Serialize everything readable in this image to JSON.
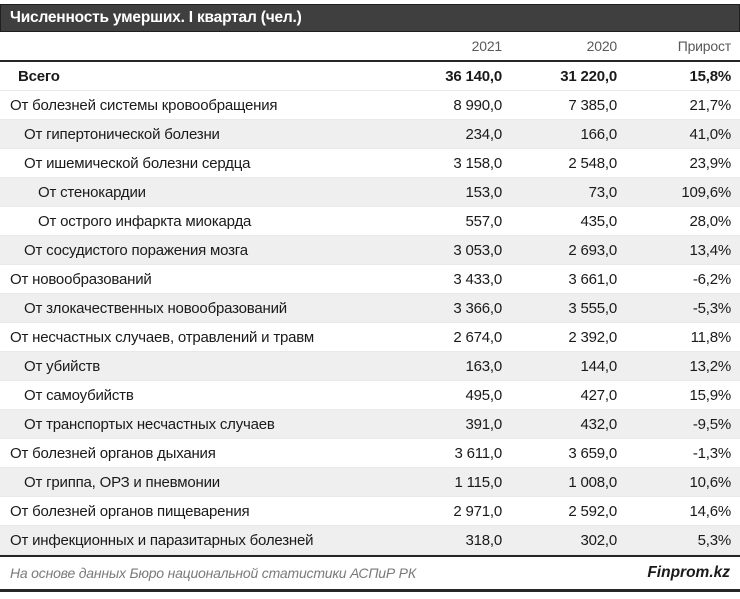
{
  "title": "Численность умерших. I квартал (чел.)",
  "table": {
    "columns": {
      "year1": "2021",
      "year2": "2020",
      "growth": "Прирост"
    },
    "rows": [
      {
        "label": "Всего",
        "y2021": "36 140,0",
        "y2020": "31 220,0",
        "growth": "15,8%",
        "indent": 0,
        "total": true,
        "shaded": false
      },
      {
        "label": "От болезней системы кровообращения",
        "y2021": "8 990,0",
        "y2020": "7 385,0",
        "growth": "21,7%",
        "indent": 0,
        "total": false,
        "shaded": false
      },
      {
        "label": "От гипертонической болезни",
        "y2021": "234,0",
        "y2020": "166,0",
        "growth": "41,0%",
        "indent": 1,
        "total": false,
        "shaded": true
      },
      {
        "label": "От ишемической болезни сердца",
        "y2021": "3 158,0",
        "y2020": "2 548,0",
        "growth": "23,9%",
        "indent": 1,
        "total": false,
        "shaded": false
      },
      {
        "label": "От стенокардии",
        "y2021": "153,0",
        "y2020": "73,0",
        "growth": "109,6%",
        "indent": 2,
        "total": false,
        "shaded": true
      },
      {
        "label": "От острого инфаркта миокарда",
        "y2021": "557,0",
        "y2020": "435,0",
        "growth": "28,0%",
        "indent": 2,
        "total": false,
        "shaded": false
      },
      {
        "label": "От сосудистого поражения мозга",
        "y2021": "3 053,0",
        "y2020": "2 693,0",
        "growth": "13,4%",
        "indent": 1,
        "total": false,
        "shaded": true
      },
      {
        "label": "От новообразований",
        "y2021": "3 433,0",
        "y2020": "3 661,0",
        "growth": "-6,2%",
        "indent": 0,
        "total": false,
        "shaded": false
      },
      {
        "label": "От злокачественных новообразований",
        "y2021": "3 366,0",
        "y2020": "3 555,0",
        "growth": "-5,3%",
        "indent": 1,
        "total": false,
        "shaded": true
      },
      {
        "label": "От несчастных случаев, отравлений и травм",
        "y2021": "2 674,0",
        "y2020": "2 392,0",
        "growth": "11,8%",
        "indent": 0,
        "total": false,
        "shaded": false
      },
      {
        "label": "От убийств",
        "y2021": "163,0",
        "y2020": "144,0",
        "growth": "13,2%",
        "indent": 1,
        "total": false,
        "shaded": true
      },
      {
        "label": "От самоубийств",
        "y2021": "495,0",
        "y2020": "427,0",
        "growth": "15,9%",
        "indent": 1,
        "total": false,
        "shaded": false
      },
      {
        "label": "От транспортых несчастных случаев",
        "y2021": "391,0",
        "y2020": "432,0",
        "growth": "-9,5%",
        "indent": 1,
        "total": false,
        "shaded": true
      },
      {
        "label": "От болезней органов дыхания",
        "y2021": "3 611,0",
        "y2020": "3 659,0",
        "growth": "-1,3%",
        "indent": 0,
        "total": false,
        "shaded": false
      },
      {
        "label": "От гриппа, ОРЗ и пневмонии",
        "y2021": "1 115,0",
        "y2020": "1 008,0",
        "growth": "10,6%",
        "indent": 1,
        "total": false,
        "shaded": true
      },
      {
        "label": "От болезней органов пищеварения",
        "y2021": "2 971,0",
        "y2020": "2 592,0",
        "growth": "14,6%",
        "indent": 0,
        "total": false,
        "shaded": false
      },
      {
        "label": "От инфекционных и паразитарных болезней",
        "y2021": "318,0",
        "y2020": "302,0",
        "growth": "5,3%",
        "indent": 0,
        "total": false,
        "shaded": true
      }
    ]
  },
  "footer": {
    "source": "На основе данных Бюро национальной статистики АСПиР РК",
    "brand": "Finprom.kz"
  },
  "colors": {
    "title_bar_bg": "#3f3f3f",
    "title_text": "#ffffff",
    "header_text": "#595959",
    "stripe_bg": "#efefef",
    "rule_dark": "#262626",
    "body_text": "#1a1a1a",
    "source_text": "#7a7a7a"
  },
  "chart_data": {
    "type": "table",
    "title": "Численность умерших. I квартал (чел.)",
    "columns": [
      "",
      "2021",
      "2020",
      "Прирост"
    ],
    "rows": [
      {
        "label": "Всего",
        "v2021": 36140.0,
        "v2020": 31220.0,
        "growth_pct": 15.8
      },
      {
        "label": "От болезней системы кровообращения",
        "v2021": 8990.0,
        "v2020": 7385.0,
        "growth_pct": 21.7
      },
      {
        "label": "От гипертонической болезни",
        "v2021": 234.0,
        "v2020": 166.0,
        "growth_pct": 41.0
      },
      {
        "label": "От ишемической болезни сердца",
        "v2021": 3158.0,
        "v2020": 2548.0,
        "growth_pct": 23.9
      },
      {
        "label": "От стенокардии",
        "v2021": 153.0,
        "v2020": 73.0,
        "growth_pct": 109.6
      },
      {
        "label": "От острого инфаркта миокарда",
        "v2021": 557.0,
        "v2020": 435.0,
        "growth_pct": 28.0
      },
      {
        "label": "От сосудистого поражения мозга",
        "v2021": 3053.0,
        "v2020": 2693.0,
        "growth_pct": 13.4
      },
      {
        "label": "От новообразований",
        "v2021": 3433.0,
        "v2020": 3661.0,
        "growth_pct": -6.2
      },
      {
        "label": "От злокачественных новообразований",
        "v2021": 3366.0,
        "v2020": 3555.0,
        "growth_pct": -5.3
      },
      {
        "label": "От несчастных случаев, отравлений и травм",
        "v2021": 2674.0,
        "v2020": 2392.0,
        "growth_pct": 11.8
      },
      {
        "label": "От убийств",
        "v2021": 163.0,
        "v2020": 144.0,
        "growth_pct": 13.2
      },
      {
        "label": "От самоубийств",
        "v2021": 495.0,
        "v2020": 427.0,
        "growth_pct": 15.9
      },
      {
        "label": "От транспортых несчастных случаев",
        "v2021": 391.0,
        "v2020": 432.0,
        "growth_pct": -9.5
      },
      {
        "label": "От болезней органов дыхания",
        "v2021": 3611.0,
        "v2020": 3659.0,
        "growth_pct": -1.3
      },
      {
        "label": "От гриппа, ОРЗ и пневмонии",
        "v2021": 1115.0,
        "v2020": 1008.0,
        "growth_pct": 10.6
      },
      {
        "label": "От болезней органов пищеварения",
        "v2021": 2971.0,
        "v2020": 2592.0,
        "growth_pct": 14.6
      },
      {
        "label": "От инфекционных и паразитарных болезней",
        "v2021": 318.0,
        "v2020": 302.0,
        "growth_pct": 5.3
      }
    ]
  }
}
